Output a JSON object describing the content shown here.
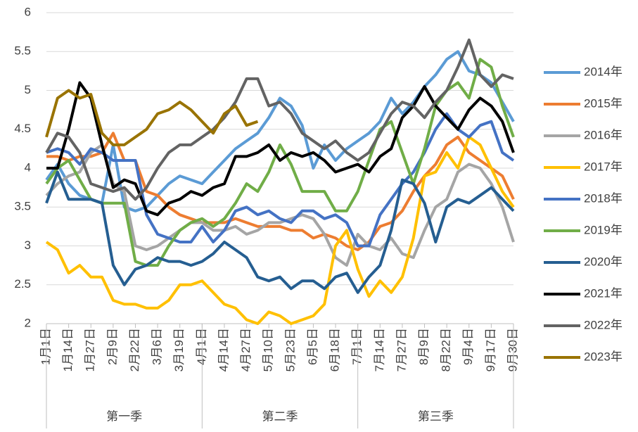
{
  "chart_data": {
    "type": "line",
    "categories": [
      "1月1日",
      null,
      "1月14日",
      null,
      "1月27日",
      null,
      "2月9日",
      null,
      "2月22日",
      null,
      "3月6日",
      null,
      "3月19日",
      null,
      "4月1日",
      null,
      "4月14日",
      null,
      "4月27日",
      null,
      "5月10日",
      null,
      "5月23日",
      null,
      "6月5日",
      null,
      "6月18日",
      null,
      "7月1日",
      null,
      "7月14日",
      null,
      "7月27日",
      null,
      "8月9日",
      null,
      "8月22日",
      null,
      "9月4日",
      null,
      "9月17日",
      null,
      "9月30日"
    ],
    "groups": [
      "第一季",
      "第二季",
      "第三季"
    ],
    "ylim": [
      2,
      6
    ],
    "yticks": [
      2,
      2.5,
      3,
      3.5,
      4,
      4.5,
      5,
      5.5,
      6
    ],
    "grid": true,
    "series": [
      {
        "name": "2014年",
        "color": "#5B9BD5",
        "values": [
          3.85,
          4.05,
          3.8,
          3.65,
          3.6,
          3.55,
          4.3,
          3.5,
          3.45,
          3.5,
          3.65,
          3.8,
          3.9,
          3.85,
          3.8,
          3.95,
          4.1,
          4.25,
          4.35,
          4.45,
          4.65,
          4.9,
          4.8,
          4.55,
          4.0,
          4.3,
          4.1,
          4.25,
          4.35,
          4.45,
          4.6,
          4.9,
          4.7,
          4.85,
          5.05,
          5.2,
          5.4,
          5.5,
          5.25,
          5.2,
          5.1,
          4.85,
          4.6
        ]
      },
      {
        "name": "2015年",
        "color": "#ED7D31",
        "values": [
          4.15,
          4.15,
          4.1,
          4.15,
          4.15,
          4.2,
          4.45,
          4.1,
          4.1,
          3.7,
          3.65,
          3.5,
          3.4,
          3.35,
          3.3,
          3.3,
          3.3,
          3.35,
          3.3,
          3.25,
          3.25,
          3.25,
          3.2,
          3.2,
          3.1,
          3.15,
          3.1,
          3.0,
          2.95,
          3.05,
          3.25,
          3.3,
          3.45,
          3.7,
          3.9,
          4.05,
          4.3,
          4.4,
          4.2,
          4.1,
          4.0,
          3.9,
          3.6
        ]
      },
      {
        "name": "2016年",
        "color": "#A5A5A5",
        "values": [
          3.65,
          3.8,
          3.9,
          3.95,
          4.2,
          4.3,
          3.8,
          3.7,
          3.0,
          2.95,
          3.0,
          3.1,
          3.2,
          3.3,
          3.3,
          3.2,
          3.2,
          3.25,
          3.15,
          3.2,
          3.3,
          3.3,
          3.35,
          3.4,
          3.35,
          3.15,
          2.85,
          2.75,
          3.15,
          3.0,
          2.95,
          3.1,
          2.9,
          2.85,
          3.2,
          3.5,
          3.6,
          3.95,
          4.05,
          4.0,
          3.8,
          3.5,
          3.05
        ]
      },
      {
        "name": "2017年",
        "color": "#FFC000",
        "values": [
          3.05,
          2.95,
          2.65,
          2.75,
          2.6,
          2.6,
          2.3,
          2.25,
          2.25,
          2.2,
          2.2,
          2.3,
          2.5,
          2.5,
          2.55,
          2.4,
          2.25,
          2.2,
          2.05,
          2.0,
          2.15,
          2.1,
          2.0,
          2.05,
          2.1,
          2.25,
          3.0,
          3.2,
          2.7,
          2.35,
          2.55,
          2.4,
          2.6,
          3.1,
          3.9,
          3.95,
          4.2,
          4.0,
          4.4,
          4.3,
          4.0,
          3.7,
          3.5
        ]
      },
      {
        "name": "2018年",
        "color": "#4472C4",
        "values": [
          4.2,
          4.25,
          4.2,
          4.05,
          4.25,
          4.2,
          4.1,
          4.1,
          4.1,
          3.4,
          3.15,
          3.1,
          3.05,
          3.05,
          3.25,
          3.05,
          3.2,
          3.45,
          3.5,
          3.4,
          3.45,
          3.35,
          3.3,
          3.45,
          3.45,
          3.35,
          3.4,
          3.3,
          3.0,
          3.0,
          3.4,
          3.6,
          3.8,
          3.95,
          4.2,
          4.5,
          4.7,
          4.5,
          4.4,
          4.55,
          4.6,
          4.2,
          4.1
        ]
      },
      {
        "name": "2019年",
        "color": "#70AD47",
        "values": [
          3.8,
          4.0,
          4.1,
          3.85,
          3.6,
          3.55,
          3.55,
          3.55,
          2.8,
          2.75,
          2.75,
          3.0,
          3.2,
          3.3,
          3.35,
          3.25,
          3.35,
          3.55,
          3.8,
          3.7,
          3.95,
          4.3,
          4.05,
          3.7,
          3.7,
          3.7,
          3.45,
          3.45,
          3.7,
          4.1,
          4.5,
          4.6,
          4.2,
          3.8,
          4.25,
          4.8,
          5.0,
          5.1,
          4.9,
          5.4,
          5.3,
          4.8,
          4.4
        ]
      },
      {
        "name": "2020年",
        "color": "#255E91",
        "values": [
          3.55,
          3.95,
          3.6,
          3.6,
          3.6,
          3.55,
          2.75,
          2.5,
          2.7,
          2.75,
          2.85,
          2.8,
          2.8,
          2.75,
          2.8,
          2.9,
          3.05,
          2.95,
          2.85,
          2.6,
          2.55,
          2.6,
          2.45,
          2.55,
          2.55,
          2.45,
          2.6,
          2.65,
          2.4,
          2.6,
          2.75,
          3.2,
          3.85,
          3.8,
          3.55,
          3.05,
          3.5,
          3.6,
          3.55,
          3.65,
          3.75,
          3.6,
          3.45
        ]
      },
      {
        "name": "2021年",
        "color": "#000000",
        "values": [
          4.0,
          4.0,
          4.5,
          5.1,
          4.9,
          4.3,
          3.75,
          3.85,
          3.8,
          3.45,
          3.4,
          3.55,
          3.6,
          3.7,
          3.65,
          3.75,
          3.8,
          4.15,
          4.15,
          4.2,
          4.3,
          4.1,
          4.2,
          4.15,
          4.2,
          4.1,
          3.95,
          4.0,
          4.05,
          3.95,
          4.15,
          4.25,
          4.65,
          4.8,
          5.05,
          4.8,
          4.65,
          4.5,
          4.75,
          4.9,
          4.8,
          4.6,
          4.2
        ]
      },
      {
        "name": "2022年",
        "color": "#636363",
        "values": [
          4.2,
          4.45,
          4.4,
          4.2,
          3.8,
          3.75,
          3.7,
          3.75,
          3.6,
          3.75,
          4.0,
          4.2,
          4.3,
          4.3,
          4.4,
          4.5,
          4.65,
          4.85,
          5.15,
          5.15,
          4.8,
          4.85,
          4.7,
          4.45,
          4.35,
          4.25,
          4.35,
          4.2,
          4.1,
          4.2,
          4.45,
          4.7,
          4.85,
          4.8,
          4.65,
          4.85,
          5.0,
          5.3,
          5.65,
          5.2,
          5.05,
          5.2,
          5.15
        ]
      },
      {
        "name": "2023年",
        "color": "#997300",
        "values": [
          4.4,
          4.9,
          5.0,
          4.9,
          4.95,
          4.45,
          4.3,
          4.3,
          4.4,
          4.5,
          4.7,
          4.75,
          4.85,
          4.75,
          4.6,
          4.45,
          4.7,
          4.8,
          4.55,
          4.6,
          null,
          null,
          null,
          null,
          null,
          null,
          null,
          null,
          null,
          null,
          null,
          null,
          null,
          null,
          null,
          null,
          null,
          null,
          null,
          null,
          null,
          null,
          null
        ]
      }
    ]
  }
}
